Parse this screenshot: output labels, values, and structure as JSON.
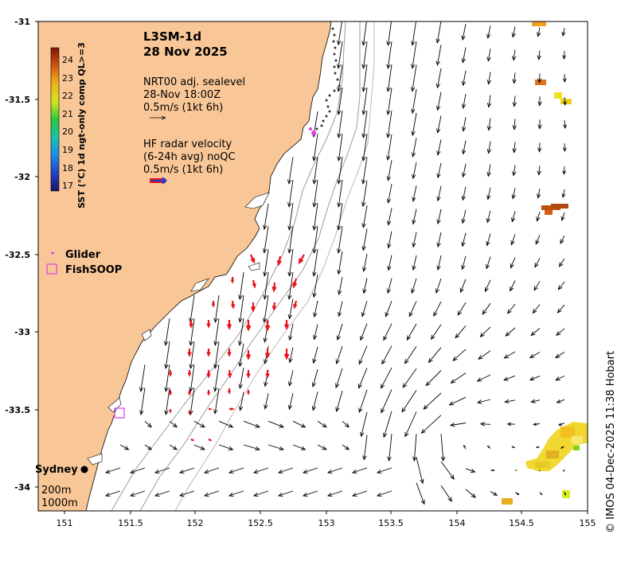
{
  "title": {
    "product": "L3SM-1d",
    "date": "28 Nov 2025"
  },
  "legend_sealevel": {
    "line1": "NRT00 adj. sealevel",
    "line2": "28-Nov 18:00Z",
    "line3": "0.5m/s (1kt 6h)"
  },
  "legend_radar": {
    "line1": "HF radar velocity",
    "line2": "(6-24h avg) noQC",
    "line3": "0.5m/s (1kt 6h)"
  },
  "colorbar": {
    "label": "SST (°C) 1d ngt-only comp QL>=3",
    "ticks": [
      "17",
      "18",
      "19",
      "20",
      "21",
      "22",
      "23",
      "24"
    ],
    "min": 16.6,
    "max": 24.6
  },
  "markers": {
    "glider": "Glider",
    "fishsoop": "FishSOOP"
  },
  "places": {
    "city": "Sydney",
    "contour_shallow": "200m",
    "contour_deep": "1000m"
  },
  "axes": {
    "x_ticks": [
      "151",
      "151.5",
      "152",
      "152.5",
      "153",
      "153.5",
      "154",
      "154.5",
      "155"
    ],
    "y_ticks": [
      "-31",
      "-31.5",
      "-32",
      "-32.5",
      "-33",
      "-33.5",
      "-34"
    ],
    "lon_range": [
      150.8,
      155.0
    ],
    "lat_range": [
      -34.3,
      -31.0
    ]
  },
  "credit": "© IMOS 04-Dec-2025 11:38 Hobart",
  "colors": {
    "land": "#f9c797",
    "ocean": "#ffffff",
    "radar_arrows": "#e8141b",
    "glider": "#e040e0",
    "fishsoop": "#e040e0"
  }
}
